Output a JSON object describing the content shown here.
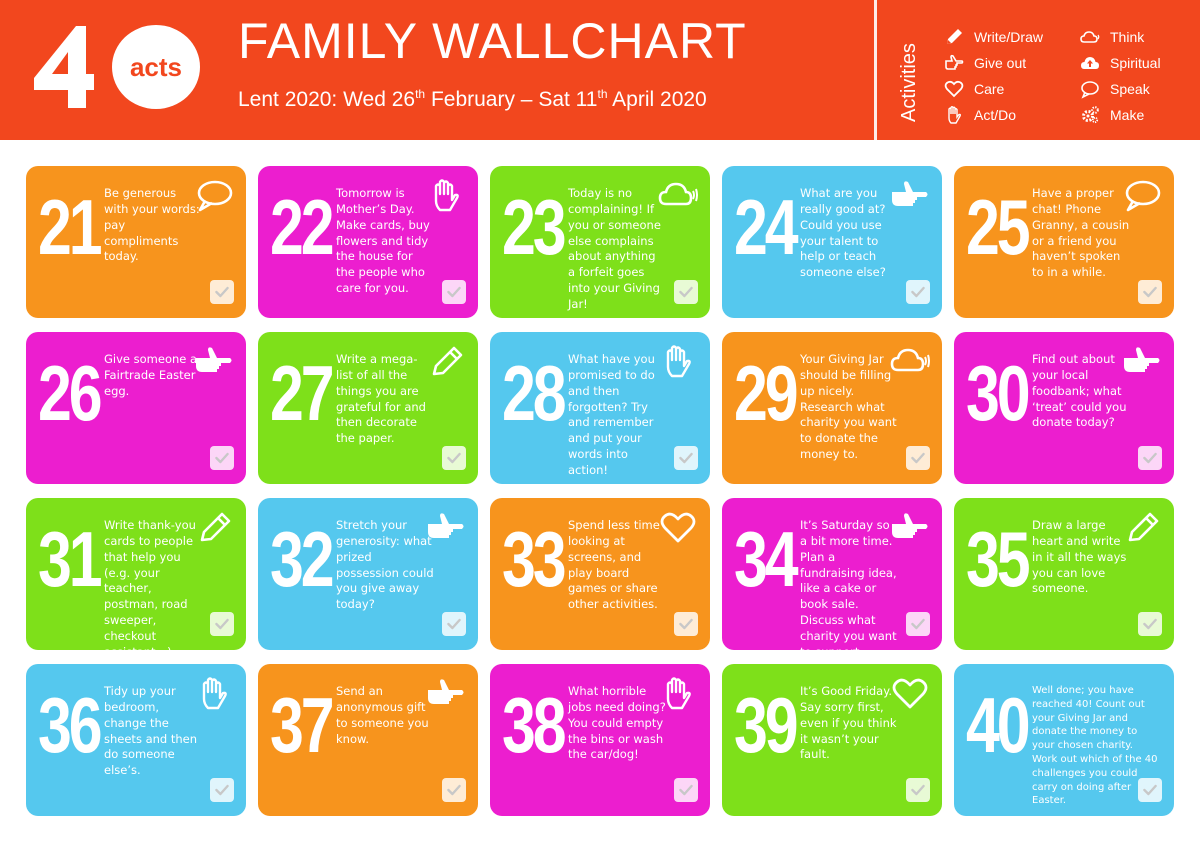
{
  "header": {
    "logo_number": "40",
    "logo_word": "acts",
    "title": "FAMILY WALLCHART",
    "subtitle_a": "Lent 2020: Wed 26",
    "subtitle_sup_a": "th",
    "subtitle_b": " February – Sat 11",
    "subtitle_sup_b": "th",
    "subtitle_c": " April 2020",
    "activities_label": "Activities",
    "legend": [
      {
        "label": "Write/Draw",
        "icon": "pencil-icon"
      },
      {
        "label": "Give out",
        "icon": "pointing-hand-icon"
      },
      {
        "label": "Care",
        "icon": "heart-icon"
      },
      {
        "label": "Act/Do",
        "icon": "raised-hand-icon"
      },
      {
        "label": "Think",
        "icon": "cloud-icon"
      },
      {
        "label": "Spiritual",
        "icon": "cloud-upload-icon"
      },
      {
        "label": "Speak",
        "icon": "speech-bubble-icon"
      },
      {
        "label": "Make",
        "icon": "gears-icon"
      }
    ],
    "colors": {
      "header": "#f2471e",
      "orange": "#f7941d",
      "magenta": "#ec1ecf",
      "green": "#7ee01a",
      "blue": "#55c8ee"
    }
  },
  "cards": [
    {
      "day": "21",
      "color": "orange",
      "icon": "speak",
      "text": "Be generous with your words: pay compliments today."
    },
    {
      "day": "22",
      "color": "magenta",
      "icon": "act",
      "text": "Tomorrow is Mother’s Day. Make cards, buy flowers and tidy the house for the people who care for you."
    },
    {
      "day": "23",
      "color": "green",
      "icon": "think",
      "text": "Today is no complaining! If you or someone else complains about anything a forfeit goes into your Giving Jar!"
    },
    {
      "day": "24",
      "color": "blue",
      "icon": "give",
      "text": "What are you really good at? Could you use your talent to help or teach someone else?"
    },
    {
      "day": "25",
      "color": "orange",
      "icon": "speak",
      "text": "Have a proper chat! Phone Granny, a cousin or a friend you haven’t spoken to in a while."
    },
    {
      "day": "26",
      "color": "magenta",
      "icon": "give",
      "text": "Give someone a Fairtrade Easter egg."
    },
    {
      "day": "27",
      "color": "green",
      "icon": "write",
      "text": "Write a mega-list of all the things you are grateful for and then decorate the paper."
    },
    {
      "day": "28",
      "color": "blue",
      "icon": "act",
      "text": "What have you promised to do and then forgotten? Try and remember and put your words into action!"
    },
    {
      "day": "29",
      "color": "orange",
      "icon": "think",
      "text": "Your Giving Jar should be filling up nicely. Research what charity you want to donate the money to."
    },
    {
      "day": "30",
      "color": "magenta",
      "icon": "give",
      "text": "Find out about your local foodbank; what ‘treat’ could you donate today?"
    },
    {
      "day": "31",
      "color": "green",
      "icon": "write",
      "text": "Write thank-you cards to people that help you (e.g. your teacher, postman, road sweeper, checkout assistant…)."
    },
    {
      "day": "32",
      "color": "blue",
      "icon": "give",
      "text": "Stretch your generosity: what prized possession could you give away today?"
    },
    {
      "day": "33",
      "color": "orange",
      "icon": "care",
      "text": "Spend less time looking at screens, and play board games or share other activities."
    },
    {
      "day": "34",
      "color": "magenta",
      "icon": "give",
      "text": "It’s Saturday so a bit more time. Plan a fundraising idea, like a cake or book sale. Discuss what charity you want to support."
    },
    {
      "day": "35",
      "color": "green",
      "icon": "write",
      "text": "Draw a large heart and write in it all the ways you can love someone."
    },
    {
      "day": "36",
      "color": "blue",
      "icon": "act",
      "text": "Tidy up your bedroom, change the sheets and then do someone else’s."
    },
    {
      "day": "37",
      "color": "orange",
      "icon": "give",
      "text": "Send an anonymous gift to someone you know."
    },
    {
      "day": "38",
      "color": "magenta",
      "icon": "act",
      "text": "What horrible jobs need doing? You could empty the bins or wash the car/dog!"
    },
    {
      "day": "39",
      "color": "green",
      "icon": "care",
      "text": "It’s Good Friday. Say sorry first, even if you think it wasn’t your fault."
    },
    {
      "day": "40",
      "color": "blue",
      "icon": "none",
      "text": "Well done; you have reached 40! Count out your Giving Jar and donate the money to your chosen charity. Work out which of the 40 challenges you could carry on doing after Easter."
    }
  ]
}
